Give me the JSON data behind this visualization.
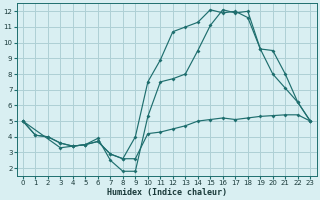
{
  "xlabel": "Humidex (Indice chaleur)",
  "bg_color": "#d9eff2",
  "grid_color": "#aed0d5",
  "line_color": "#1e6e6e",
  "xlim": [
    -0.5,
    23.5
  ],
  "ylim": [
    1.5,
    12.5
  ],
  "xticks": [
    0,
    1,
    2,
    3,
    4,
    5,
    6,
    7,
    8,
    9,
    10,
    11,
    12,
    13,
    14,
    15,
    16,
    17,
    18,
    19,
    20,
    21,
    22,
    23
  ],
  "yticks": [
    2,
    3,
    4,
    5,
    6,
    7,
    8,
    9,
    10,
    11,
    12
  ],
  "line1_x": [
    0,
    1,
    2,
    3,
    4,
    5,
    6,
    7,
    8,
    9,
    10,
    11,
    12,
    13,
    14,
    15,
    16,
    17,
    18,
    19,
    20,
    21,
    22,
    23
  ],
  "line1_y": [
    5.0,
    4.1,
    4.0,
    3.6,
    3.4,
    3.5,
    3.7,
    2.9,
    2.6,
    2.6,
    4.2,
    4.3,
    4.5,
    4.7,
    5.0,
    5.1,
    5.2,
    5.1,
    5.2,
    5.3,
    5.35,
    5.4,
    5.4,
    5.0
  ],
  "line2_x": [
    0,
    1,
    2,
    3,
    4,
    5,
    6,
    7,
    8,
    9,
    10,
    11,
    12,
    13,
    14,
    15,
    16,
    17,
    18,
    19,
    20,
    21,
    22,
    23
  ],
  "line2_y": [
    5.0,
    4.1,
    4.0,
    3.6,
    3.4,
    3.5,
    3.7,
    2.9,
    2.6,
    4.0,
    7.5,
    8.9,
    10.7,
    11.0,
    11.3,
    12.1,
    11.9,
    12.0,
    11.6,
    9.6,
    8.0,
    7.1,
    6.2,
    5.0
  ],
  "line3_x": [
    0,
    3,
    4,
    5,
    6,
    7,
    8,
    9,
    10,
    11,
    12,
    13,
    14,
    15,
    16,
    17,
    18,
    19,
    20,
    21,
    22,
    23
  ],
  "line3_y": [
    5.0,
    3.3,
    3.4,
    3.5,
    3.9,
    2.5,
    1.8,
    1.8,
    5.3,
    7.5,
    7.7,
    8.0,
    9.5,
    11.1,
    12.1,
    11.9,
    12.0,
    9.6,
    9.5,
    8.0,
    6.2,
    5.0
  ]
}
